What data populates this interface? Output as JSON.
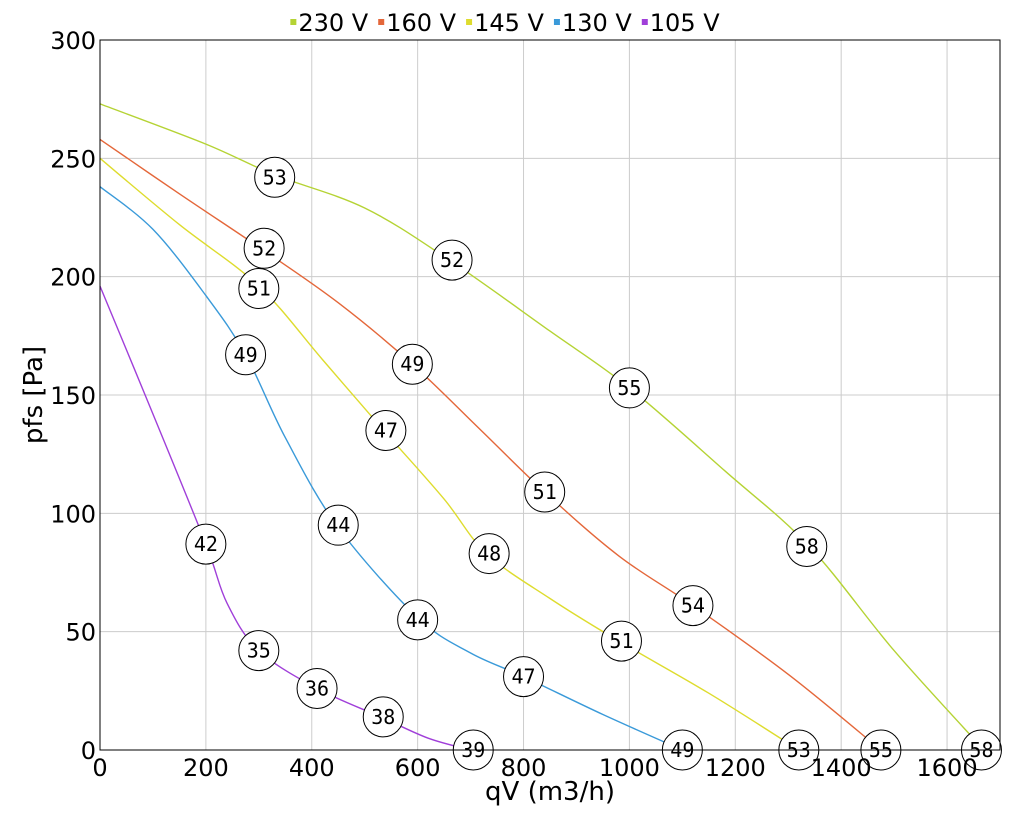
{
  "chart_data": {
    "type": "line",
    "xlabel": "qV (m3/h)",
    "ylabel": "pfs [Pa]",
    "xlim": [
      0,
      1700
    ],
    "ylim": [
      0,
      300
    ],
    "x_ticks": [
      0,
      200,
      400,
      600,
      800,
      1000,
      1200,
      1400,
      1600
    ],
    "y_ticks": [
      0,
      50,
      100,
      150,
      200,
      250,
      300
    ],
    "grid": true,
    "legend_position": "top-center",
    "series": [
      {
        "name": "230 V",
        "color": "#b5d334",
        "points": [
          [
            0,
            273
          ],
          [
            200,
            256
          ],
          [
            330,
            243
          ],
          [
            500,
            229
          ],
          [
            660,
            207
          ],
          [
            850,
            177
          ],
          [
            1000,
            153
          ],
          [
            1180,
            118
          ],
          [
            1340,
            86
          ],
          [
            1500,
            42
          ],
          [
            1670,
            0
          ]
        ],
        "markers": [
          {
            "x": 330,
            "y": 242,
            "label": "53"
          },
          {
            "x": 665,
            "y": 207,
            "label": "52"
          },
          {
            "x": 1000,
            "y": 153,
            "label": "55"
          },
          {
            "x": 1335,
            "y": 86,
            "label": "58"
          },
          {
            "x": 1665,
            "y": 0,
            "label": "58"
          }
        ]
      },
      {
        "name": "160 V",
        "color": "#e4673a",
        "points": [
          [
            0,
            258
          ],
          [
            150,
            235
          ],
          [
            310,
            211
          ],
          [
            450,
            189
          ],
          [
            590,
            163
          ],
          [
            720,
            135
          ],
          [
            840,
            109
          ],
          [
            980,
            82
          ],
          [
            1120,
            61
          ],
          [
            1300,
            32
          ],
          [
            1475,
            0
          ]
        ],
        "markers": [
          {
            "x": 310,
            "y": 212,
            "label": "52"
          },
          {
            "x": 590,
            "y": 163,
            "label": "49"
          },
          {
            "x": 840,
            "y": 109,
            "label": "51"
          },
          {
            "x": 1120,
            "y": 61,
            "label": "54"
          },
          {
            "x": 1475,
            "y": 0,
            "label": "55"
          }
        ]
      },
      {
        "name": "145 V",
        "color": "#dedc2e",
        "points": [
          [
            0,
            250
          ],
          [
            150,
            222
          ],
          [
            300,
            196
          ],
          [
            420,
            165
          ],
          [
            540,
            134
          ],
          [
            650,
            106
          ],
          [
            730,
            83
          ],
          [
            850,
            64
          ],
          [
            980,
            46
          ],
          [
            1150,
            24
          ],
          [
            1320,
            0
          ]
        ],
        "markers": [
          {
            "x": 300,
            "y": 195,
            "label": "51"
          },
          {
            "x": 540,
            "y": 135,
            "label": "47"
          },
          {
            "x": 735,
            "y": 83,
            "label": "48"
          },
          {
            "x": 985,
            "y": 46,
            "label": "51"
          },
          {
            "x": 1320,
            "y": 0,
            "label": "53"
          }
        ]
      },
      {
        "name": "130 V",
        "color": "#3a9ad9",
        "points": [
          [
            0,
            238
          ],
          [
            100,
            220
          ],
          [
            200,
            192
          ],
          [
            275,
            167
          ],
          [
            350,
            132
          ],
          [
            450,
            94
          ],
          [
            600,
            56
          ],
          [
            700,
            41
          ],
          [
            800,
            31
          ],
          [
            950,
            15
          ],
          [
            1100,
            0
          ]
        ],
        "markers": [
          {
            "x": 275,
            "y": 167,
            "label": "49"
          },
          {
            "x": 450,
            "y": 95,
            "label": "44"
          },
          {
            "x": 600,
            "y": 55,
            "label": "44"
          },
          {
            "x": 800,
            "y": 31,
            "label": "47"
          },
          {
            "x": 1100,
            "y": 0,
            "label": "49"
          }
        ]
      },
      {
        "name": "105 V",
        "color": "#a03fd9",
        "points": [
          [
            0,
            196
          ],
          [
            100,
            142
          ],
          [
            200,
            87
          ],
          [
            240,
            62
          ],
          [
            300,
            42
          ],
          [
            410,
            26
          ],
          [
            530,
            14
          ],
          [
            620,
            5
          ],
          [
            700,
            0
          ]
        ],
        "markers": [
          {
            "x": 200,
            "y": 87,
            "label": "42"
          },
          {
            "x": 300,
            "y": 42,
            "label": "35"
          },
          {
            "x": 410,
            "y": 26,
            "label": "36"
          },
          {
            "x": 535,
            "y": 14,
            "label": "38"
          },
          {
            "x": 705,
            "y": 0,
            "label": "39"
          }
        ]
      }
    ]
  }
}
